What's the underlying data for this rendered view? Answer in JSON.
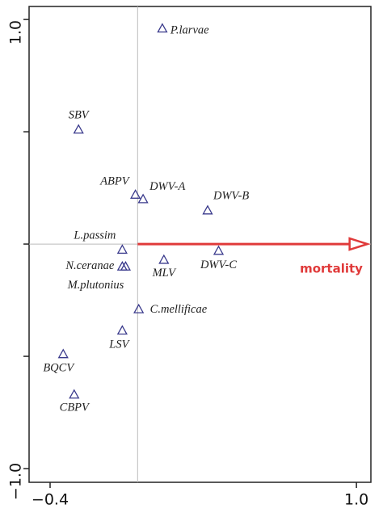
{
  "chart_data": {
    "type": "scatter",
    "xlim": [
      -0.496,
      1.066
    ],
    "ylim": [
      -1.061,
      1.058
    ],
    "xticks": [
      {
        "value": -0.4,
        "label": "−0.4"
      },
      {
        "value": 1.0,
        "label": "1.0"
      }
    ],
    "yticks": [
      {
        "value": 1.0,
        "label": "1.0"
      },
      {
        "value": -1.0,
        "label": "−1.0"
      }
    ],
    "yminor_ticks": [
      0.5,
      0,
      -0.5
    ],
    "reference_lines": {
      "x": 0,
      "y": 0
    },
    "marker_color": "#3a3a8c",
    "points": [
      {
        "label": "P.larvae",
        "x": 0.113,
        "y": 0.96
      },
      {
        "label": "SBV",
        "x": -0.27,
        "y": 0.51
      },
      {
        "label": "ABPV",
        "x": -0.01,
        "y": 0.22
      },
      {
        "label": "DWV-A",
        "x": 0.025,
        "y": 0.2
      },
      {
        "label": "DWV-B",
        "x": 0.32,
        "y": 0.15
      },
      {
        "label": "L.passim",
        "x": -0.07,
        "y": -0.025
      },
      {
        "label": "DWV-C",
        "x": 0.37,
        "y": -0.03
      },
      {
        "label": "N.ceranae",
        "x": -0.07,
        "y": -0.1
      },
      {
        "label": "M.plutonius",
        "x": -0.055,
        "y": -0.1
      },
      {
        "label": "MLV",
        "x": 0.12,
        "y": -0.07
      },
      {
        "label": "C.mellificae",
        "x": 0.005,
        "y": -0.29
      },
      {
        "label": "LSV",
        "x": -0.07,
        "y": -0.385
      },
      {
        "label": "BQCV",
        "x": -0.34,
        "y": -0.49
      },
      {
        "label": "CBPV",
        "x": -0.29,
        "y": -0.67
      }
    ],
    "arrow": {
      "label": "mortality",
      "x": 1.05,
      "y": 0,
      "color": "#e03a3a"
    }
  }
}
